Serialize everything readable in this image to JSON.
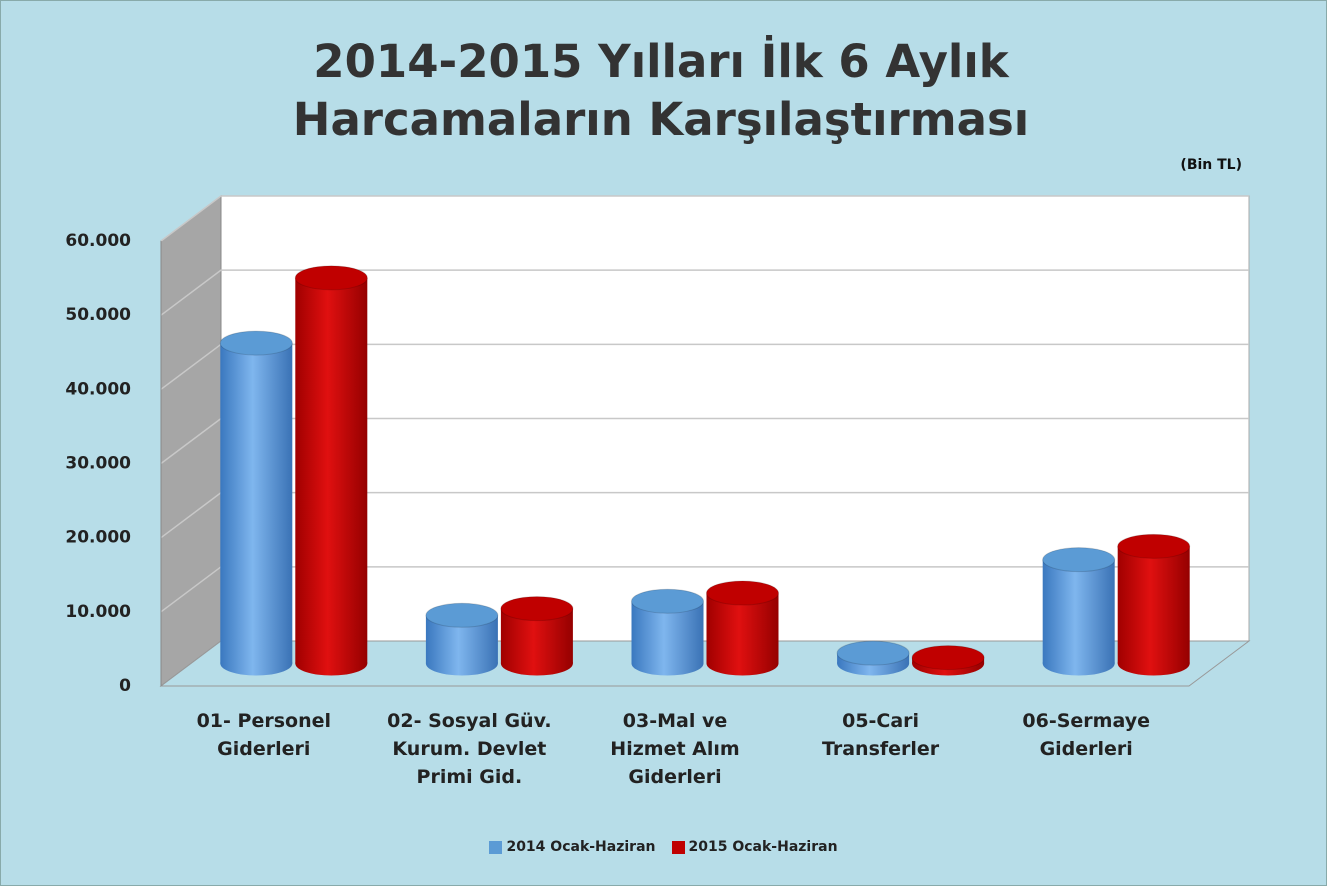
{
  "chart_data": {
    "type": "bar3d",
    "title": "2014-2015 Yılları İlk 6 Aylık Harcamaların Karşılaştırması",
    "unit": "(Bin TL)",
    "categories": [
      "01- Personel\nGiderleri",
      "02- Sosyal Güv.\nKurum. Devlet\nPrimi Gid.",
      "03-Mal ve\nHizmet Alım\nGiderleri",
      "05-Cari\nTransferler",
      "06-Sermaye\nGiderleri"
    ],
    "series": [
      {
        "name": "2014 Ocak-Haziran",
        "color": "#5b9bd5",
        "values": [
          43200,
          6500,
          8400,
          1400,
          14000
        ]
      },
      {
        "name": "2015 Ocak-Haziran",
        "color": "#c00000",
        "values": [
          52000,
          7400,
          9500,
          800,
          15800
        ]
      }
    ],
    "ylim": [
      0,
      60000
    ],
    "yticks": [
      0,
      {
        "value": 10000,
        "label": "10.000"
      },
      {
        "value": 20000,
        "label": "20.000"
      },
      {
        "value": 30000,
        "label": "30.000"
      },
      {
        "value": 40000,
        "label": "40.000"
      },
      {
        "value": 50000,
        "label": "50.000"
      },
      {
        "value": 60000,
        "label": "60.000"
      }
    ],
    "grid": true,
    "legend": "bottom"
  }
}
